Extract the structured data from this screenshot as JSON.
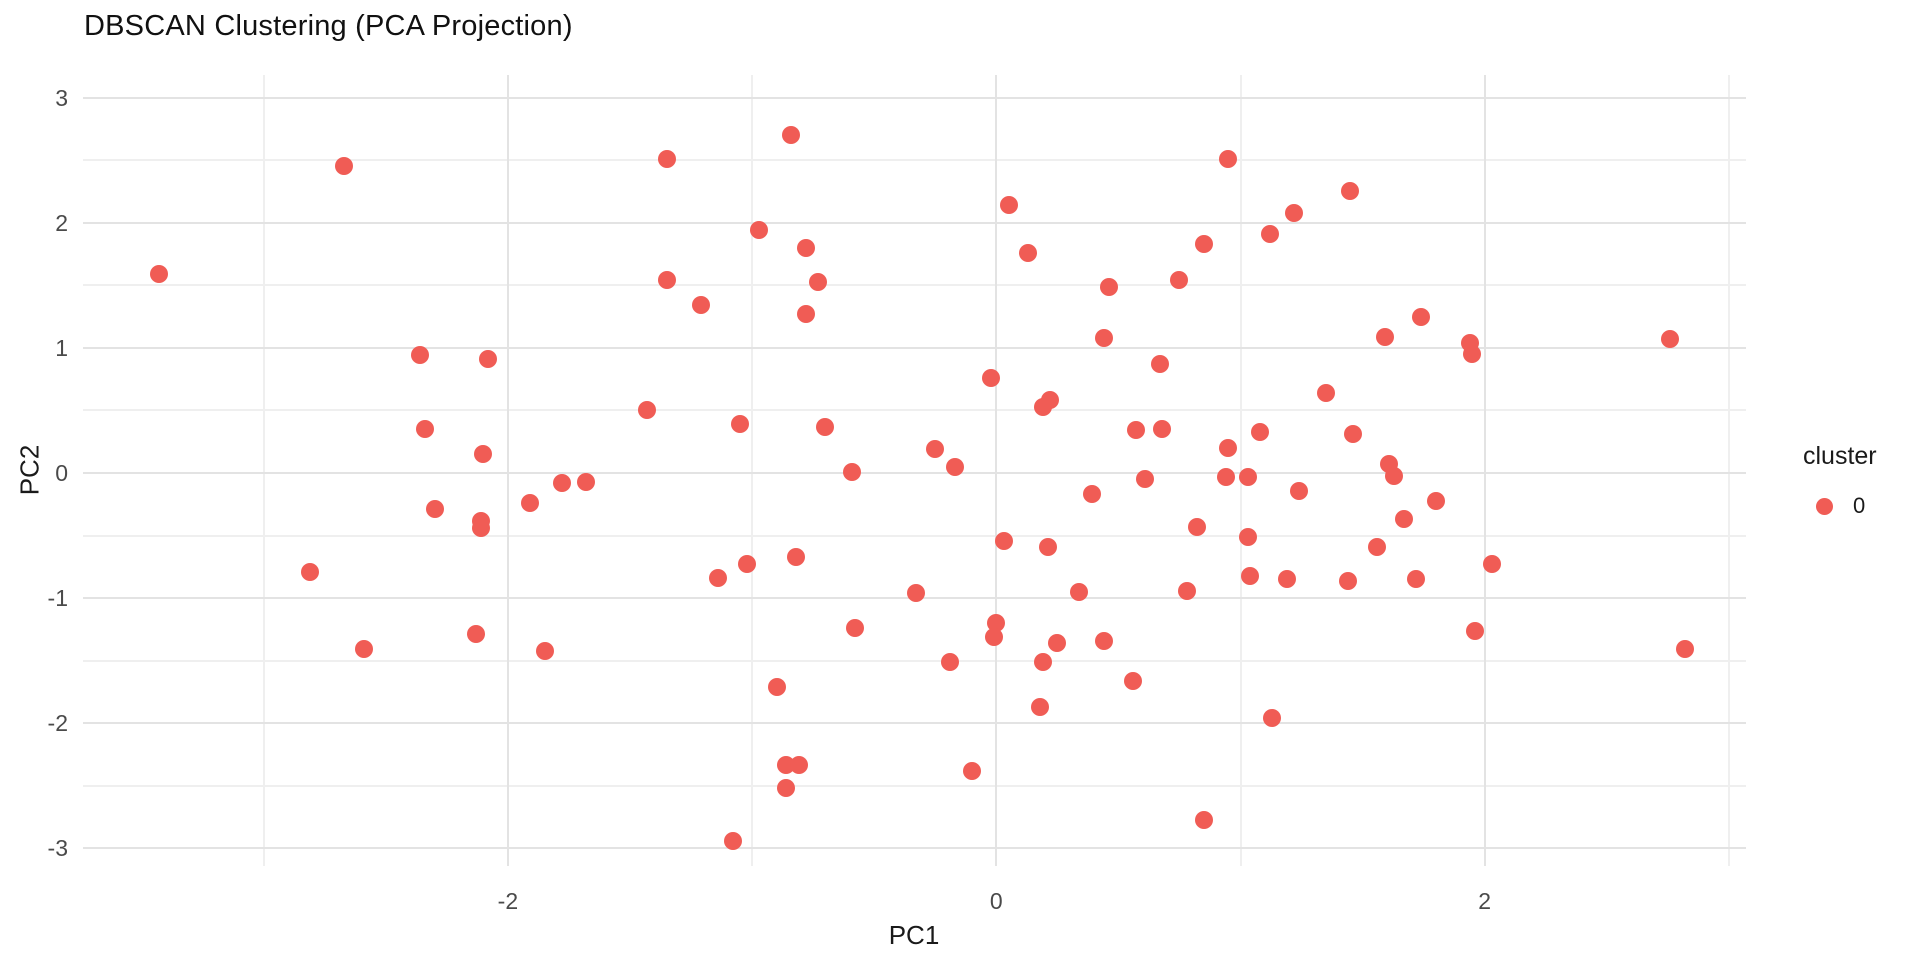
{
  "chart_data": {
    "type": "scatter",
    "title": "DBSCAN Clustering (PCA Projection)",
    "xlabel": "PC1",
    "ylabel": "PC2",
    "xlim": [
      -3.74,
      3.07
    ],
    "ylim": [
      -3.14,
      3.18
    ],
    "x_major_ticks": [
      -2,
      0,
      2
    ],
    "x_minor_gridlines": [
      -3,
      -1,
      1,
      3
    ],
    "y_major_ticks": [
      3,
      2,
      1,
      0,
      -1,
      -2,
      -3
    ],
    "y_minor_gridlines": [
      2.5,
      1.5,
      0.5,
      -0.5,
      -1.5,
      -2.5
    ],
    "grid": true,
    "legend": {
      "title": "cluster",
      "position": "right",
      "entries": [
        {
          "label": "0",
          "color": "#F05C55"
        }
      ]
    },
    "series": [
      {
        "name": "0",
        "color": "#F05C55",
        "points": [
          [
            -2.67,
            2.45
          ],
          [
            -3.43,
            1.59
          ],
          [
            -2.36,
            0.94
          ],
          [
            -2.08,
            0.91
          ],
          [
            -2.34,
            0.35
          ],
          [
            -2.1,
            0.15
          ],
          [
            -1.78,
            -0.08
          ],
          [
            -1.68,
            -0.07
          ],
          [
            -1.91,
            -0.24
          ],
          [
            -2.3,
            -0.29
          ],
          [
            -2.11,
            -0.38
          ],
          [
            -2.11,
            -0.44
          ],
          [
            -2.81,
            -0.79
          ],
          [
            -2.59,
            -1.41
          ],
          [
            -2.13,
            -1.29
          ],
          [
            -1.85,
            -1.42
          ],
          [
            -0.84,
            2.7
          ],
          [
            -1.35,
            2.51
          ],
          [
            -0.97,
            1.94
          ],
          [
            -0.78,
            1.8
          ],
          [
            -1.35,
            1.54
          ],
          [
            -0.73,
            1.53
          ],
          [
            -1.21,
            1.34
          ],
          [
            -0.78,
            1.27
          ],
          [
            0.95,
            2.51
          ],
          [
            0.05,
            2.14
          ],
          [
            1.45,
            2.25
          ],
          [
            1.22,
            2.08
          ],
          [
            1.12,
            1.91
          ],
          [
            0.13,
            1.76
          ],
          [
            0.85,
            1.83
          ],
          [
            0.46,
            1.49
          ],
          [
            0.75,
            1.54
          ],
          [
            0.44,
            1.08
          ],
          [
            1.59,
            1.09
          ],
          [
            1.74,
            1.25
          ],
          [
            1.94,
            1.04
          ],
          [
            1.95,
            0.95
          ],
          [
            2.76,
            1.07
          ],
          [
            -1.43,
            0.5
          ],
          [
            -0.02,
            0.76
          ],
          [
            -1.05,
            0.39
          ],
          [
            -0.7,
            0.37
          ],
          [
            -0.25,
            0.19
          ],
          [
            -0.17,
            0.05
          ],
          [
            -0.59,
            0.01
          ],
          [
            0.03,
            -0.54
          ],
          [
            -0.82,
            -0.67
          ],
          [
            -1.02,
            -0.73
          ],
          [
            -1.14,
            -0.84
          ],
          [
            -0.33,
            -0.96
          ],
          [
            0.67,
            0.87
          ],
          [
            0.22,
            0.58
          ],
          [
            0.19,
            0.53
          ],
          [
            1.35,
            0.64
          ],
          [
            0.57,
            0.34
          ],
          [
            0.68,
            0.35
          ],
          [
            0.95,
            0.2
          ],
          [
            1.08,
            0.33
          ],
          [
            1.46,
            0.31
          ],
          [
            1.61,
            0.07
          ],
          [
            1.63,
            -0.02
          ],
          [
            0.94,
            -0.03
          ],
          [
            1.03,
            -0.03
          ],
          [
            0.61,
            -0.05
          ],
          [
            0.39,
            -0.17
          ],
          [
            1.24,
            -0.14
          ],
          [
            0.82,
            -0.43
          ],
          [
            1.03,
            -0.51
          ],
          [
            0.21,
            -0.59
          ],
          [
            1.56,
            -0.59
          ],
          [
            1.04,
            -0.82
          ],
          [
            1.19,
            -0.85
          ],
          [
            1.44,
            -0.86
          ],
          [
            0.34,
            -0.95
          ],
          [
            0.78,
            -0.94
          ],
          [
            1.8,
            -0.22
          ],
          [
            1.67,
            -0.37
          ],
          [
            2.03,
            -0.73
          ],
          [
            1.72,
            -0.85
          ],
          [
            -0.58,
            -1.24
          ],
          [
            0.0,
            -1.2
          ],
          [
            -0.01,
            -1.31
          ],
          [
            -0.19,
            -1.51
          ],
          [
            -0.9,
            -1.71
          ],
          [
            -0.86,
            -2.33
          ],
          [
            -0.81,
            -2.33
          ],
          [
            -0.86,
            -2.52
          ],
          [
            -0.1,
            -2.38
          ],
          [
            -1.08,
            -2.94
          ],
          [
            0.25,
            -1.36
          ],
          [
            0.44,
            -1.34
          ],
          [
            0.19,
            -1.51
          ],
          [
            0.56,
            -1.66
          ],
          [
            0.18,
            -1.87
          ],
          [
            1.13,
            -1.96
          ],
          [
            0.85,
            -2.77
          ],
          [
            1.96,
            -1.26
          ],
          [
            2.82,
            -1.41
          ]
        ]
      }
    ]
  },
  "colors": {
    "point": "#F05C55",
    "grid_major": "#e3e3e3",
    "grid_minor": "#efefef",
    "tick_text": "#4a4a4a",
    "title_text": "#111111",
    "background": "#ffffff"
  }
}
